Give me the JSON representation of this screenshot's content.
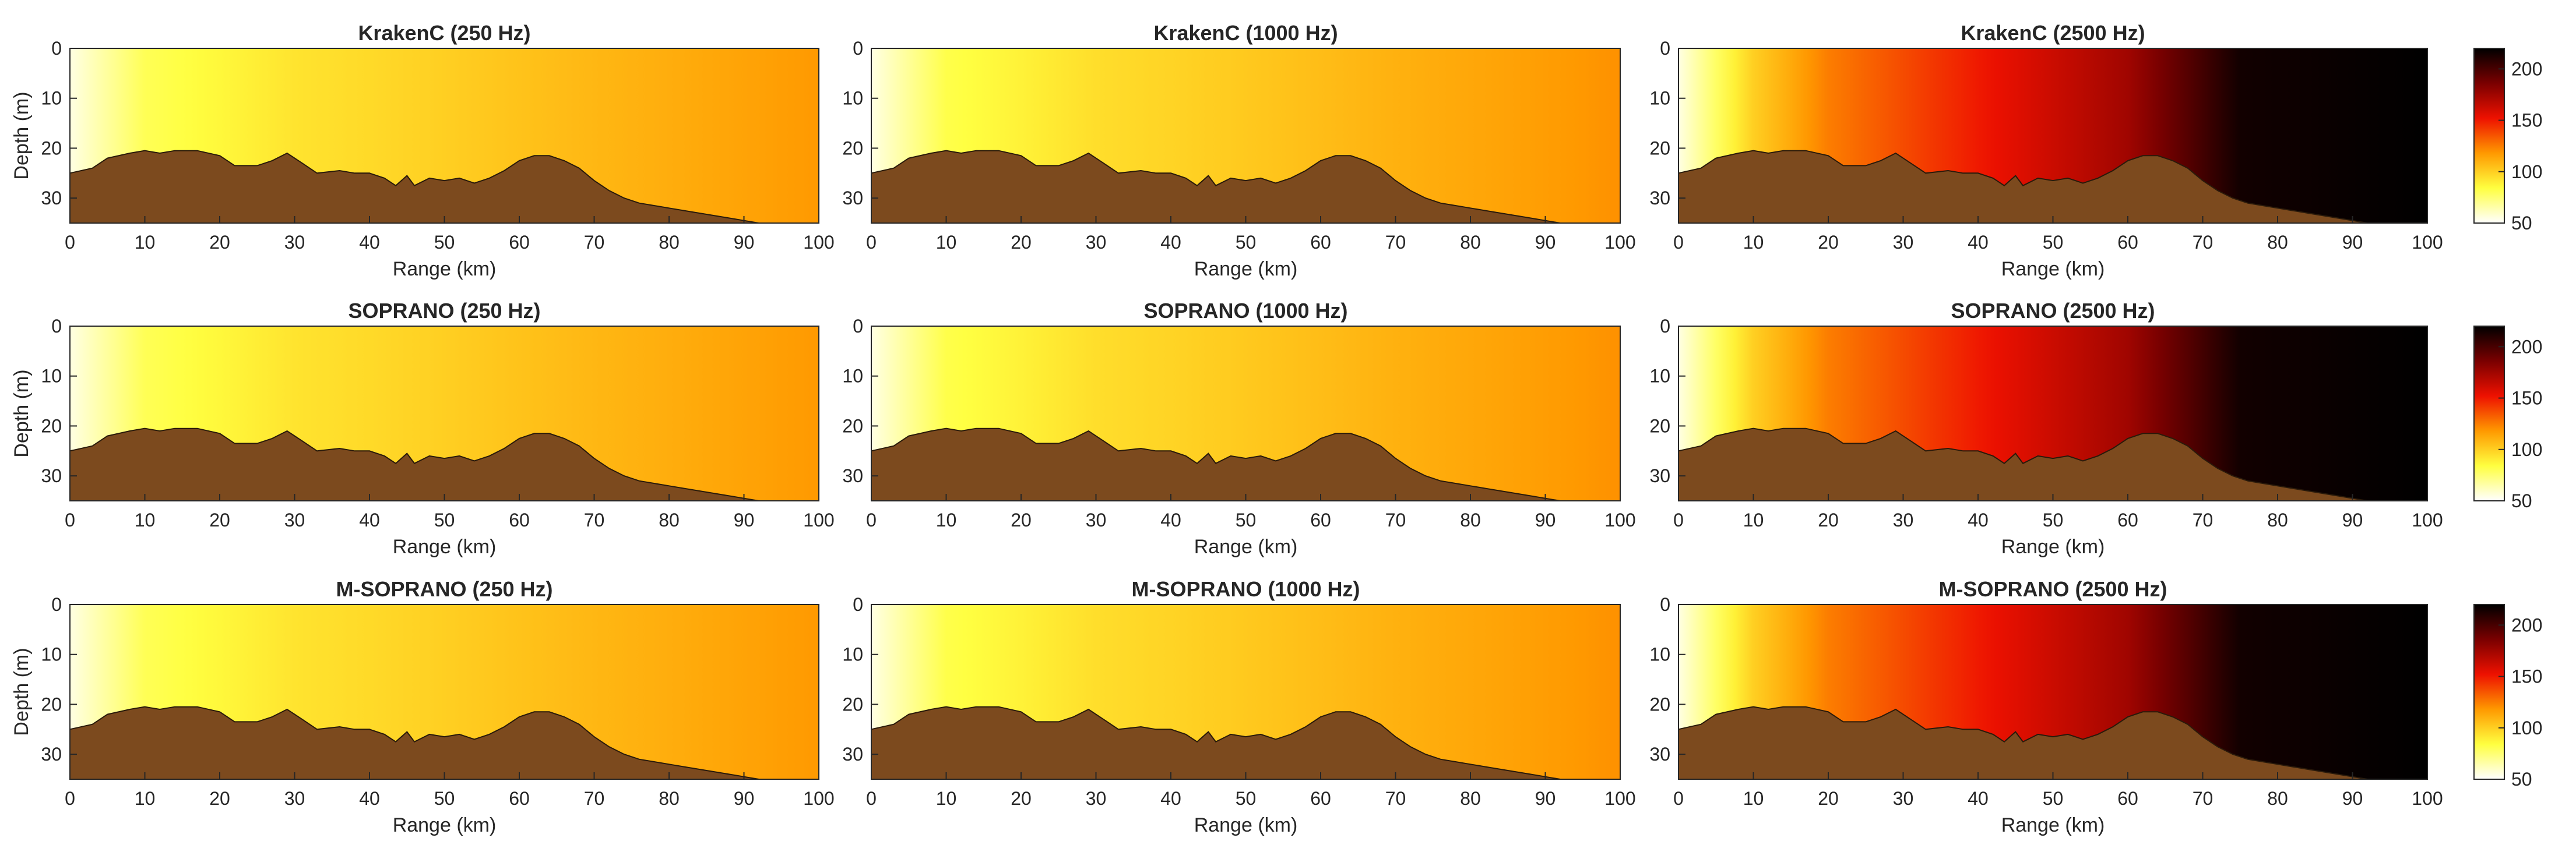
{
  "chart_data": {
    "type": "heatmap",
    "layout": "3x3 grid of panels sharing axes",
    "rows": [
      "KrakenC",
      "SOPRANO",
      "M-SOPRANO"
    ],
    "columns": [
      "250 Hz",
      "1000 Hz",
      "2500 Hz"
    ],
    "titles": [
      [
        "KrakenC (250 Hz)",
        "KrakenC (1000 Hz)",
        "KrakenC (2500 Hz)"
      ],
      [
        "SOPRANO (250 Hz)",
        "SOPRANO (1000 Hz)",
        "SOPRANO (2500 Hz)"
      ],
      [
        "M-SOPRANO (250 Hz)",
        "M-SOPRANO (1000 Hz)",
        "M-SOPRANO (2500 Hz)"
      ]
    ],
    "xlabel": "Range (km)",
    "ylabel": "Depth (m)",
    "xlim": [
      0,
      100
    ],
    "ylim": [
      0,
      35
    ],
    "y_reversed": true,
    "xticks": [
      "0",
      "10",
      "20",
      "30",
      "40",
      "50",
      "60",
      "70",
      "80",
      "90",
      "100"
    ],
    "yticks": [
      "0",
      "10",
      "20",
      "30"
    ],
    "colorbar": {
      "ticks": [
        "50",
        "100",
        "150",
        "200"
      ],
      "range": [
        50,
        220
      ],
      "colormap": [
        "#ffffff",
        "#ffff40",
        "#ff9900",
        "#ee1100",
        "#7a0000",
        "#000000"
      ]
    },
    "seabed_color": "#7c4a1e",
    "bathymetry": {
      "range_km": [
        0,
        3,
        5,
        8,
        10,
        12,
        14,
        17,
        20,
        22,
        25,
        27,
        29,
        31,
        33,
        36,
        38,
        40,
        42,
        43.5,
        45,
        46,
        48,
        50,
        52,
        54,
        56,
        58,
        60,
        62,
        64,
        66,
        68,
        70,
        72,
        74,
        76,
        78,
        80,
        82,
        84,
        86,
        88,
        90,
        92,
        94,
        96,
        98,
        100
      ],
      "depth_m": [
        25,
        24,
        22,
        21,
        20.5,
        21,
        20.5,
        20.5,
        21.5,
        23.5,
        23.5,
        22.5,
        21,
        23,
        25,
        24.5,
        25,
        25,
        26,
        27.5,
        25.5,
        27.5,
        26,
        26.5,
        26,
        27,
        26,
        24.5,
        22.5,
        21.5,
        21.5,
        22.5,
        24,
        26.5,
        28.5,
        30,
        31,
        31.5,
        32,
        32.5,
        33,
        33.5,
        34,
        34.5,
        35,
        35,
        35,
        35,
        35
      ]
    },
    "transmission_loss_model": {
      "by_frequency_hz": [
        250,
        1000,
        2500
      ],
      "tl_db_at_range_km": [
        [
          [
            0,
            55
          ],
          [
            10,
            80
          ],
          [
            30,
            93
          ],
          [
            50,
            100
          ],
          [
            70,
            108
          ],
          [
            100,
            118
          ]
        ],
        [
          [
            0,
            55
          ],
          [
            10,
            82
          ],
          [
            30,
            95
          ],
          [
            50,
            102
          ],
          [
            70,
            110
          ],
          [
            100,
            120
          ]
        ],
        [
          [
            0,
            55
          ],
          [
            10,
            100
          ],
          [
            20,
            125
          ],
          [
            40,
            150
          ],
          [
            60,
            175
          ],
          [
            75,
            215
          ],
          [
            100,
            220
          ]
        ]
      ]
    }
  }
}
